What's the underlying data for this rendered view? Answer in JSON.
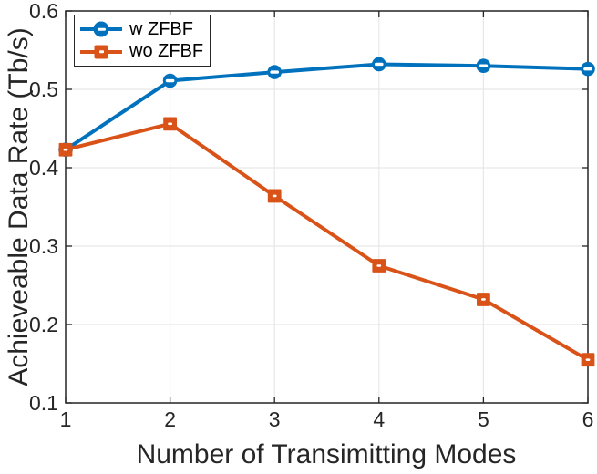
{
  "figure": {
    "background": "#ffffff",
    "axis_color": "#262626",
    "grid_color": "#e7e7e7"
  },
  "chart_data": {
    "type": "line",
    "title": "",
    "xlabel": "Number of Transimitting Modes",
    "ylabel": "Achieveable Data Rate (Tb/s)",
    "x": [
      1,
      2,
      3,
      4,
      5,
      6
    ],
    "xlim": [
      1,
      6
    ],
    "ylim": [
      0.1,
      0.6
    ],
    "xticks": [
      1,
      2,
      3,
      4,
      5,
      6
    ],
    "xtick_labels": [
      "1",
      "2",
      "3",
      "4",
      "5",
      "6"
    ],
    "yticks": [
      0.1,
      0.2,
      0.3,
      0.4,
      0.5,
      0.6
    ],
    "ytick_labels": [
      "0.1",
      "0.2",
      "0.3",
      "0.4",
      "0.5",
      "0.6"
    ],
    "grid": true,
    "legend_position": "top-left",
    "series": [
      {
        "name": "w ZFBF",
        "color": "#0072BD",
        "marker": "circle",
        "values": [
          0.423,
          0.511,
          0.522,
          0.532,
          0.53,
          0.526
        ]
      },
      {
        "name": "wo ZFBF",
        "color": "#D95319",
        "marker": "square",
        "values": [
          0.423,
          0.456,
          0.364,
          0.275,
          0.232,
          0.155
        ]
      }
    ]
  }
}
